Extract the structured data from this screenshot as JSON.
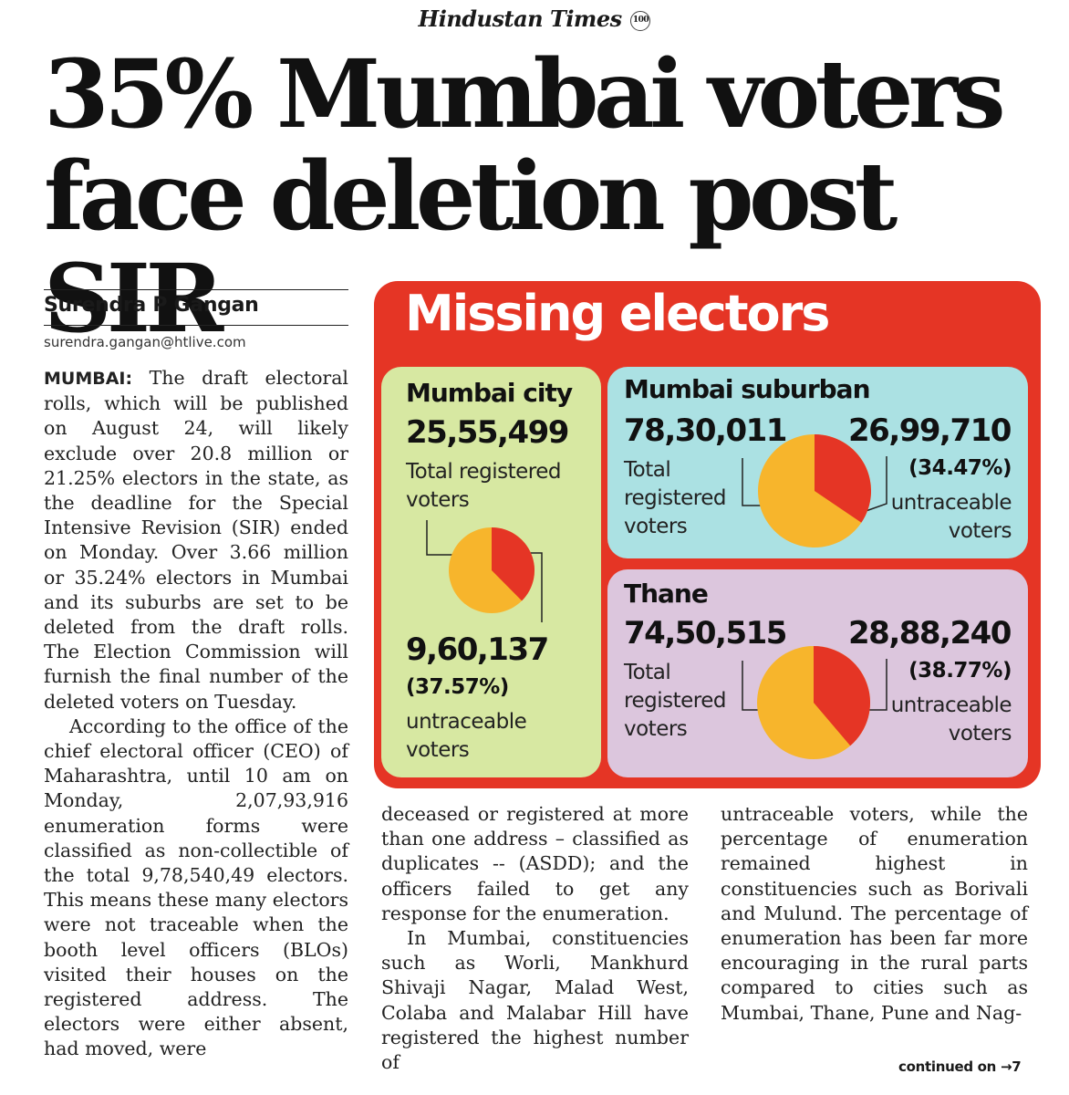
{
  "masthead": {
    "name": "Hindustan Times",
    "seal": "100"
  },
  "headline": {
    "line1": "35% Mumbai voters",
    "line2": "face deletion post SIR"
  },
  "byline": {
    "author": "Surendra P Gangan",
    "email": "surendra.gangan@htlive.com"
  },
  "article": {
    "dateline": "MUMBAI:",
    "col1_p1": " The draft electoral rolls, which will be published on August 24, will likely exclude over 20.8 million or 21.25% electors in the state, as the deadline for the Special Intensive Revision (SIR) ended on Monday. Over 3.66 million or 35.24% electors in Mumbai and its suburbs are set to be deleted from the draft rolls. The Election Commission will furnish the final number of the deleted voters on Tuesday.",
    "col1_p2": "According to the office of the chief electoral officer (CEO) of Maharashtra, until 10 am on Monday, 2,07,93,916 enumeration forms were classified as non-collectible of the total 9,78,540,49 electors. This means these many electors were not traceable when the booth level officers (BLOs) visited their houses on the registered address. The electors were either absent, had moved, were",
    "col2_p1": "deceased or registered at more than one address – classified as duplicates -- (ASDD); and the officers failed to get any response for the enumeration.",
    "col2_p2": "In Mumbai, constituencies such as Worli, Mankhurd Shivaji Nagar, Malad West, Colaba and Malabar Hill have registered the highest number of",
    "col3_p1": "untraceable voters, while the percentage of enumeration remained highest in constituencies such as Borivali and Mulund. The percentage of enumeration has been far more encouraging in the rural parts compared to cities such as Mumbai, Thane, Pune and Nag-",
    "continued": "continued on →7"
  },
  "graphic": {
    "title": "Missing electors",
    "colors": {
      "frame": "#e53525",
      "untraceable": "#e53525",
      "rest": "#f7b52c"
    },
    "city": {
      "name": "Mumbai city",
      "total": "25,55,499",
      "total_label_1": "Total registered",
      "total_label_2": "voters",
      "missing": "9,60,137",
      "pct": "(37.57%)",
      "missing_label_1": "untraceable",
      "missing_label_2": "voters",
      "share": 0.3757
    },
    "suburban": {
      "name": "Mumbai suburban",
      "total": "78,30,011",
      "total_label_1": "Total",
      "total_label_2": "registered",
      "total_label_3": "voters",
      "missing": "26,99,710",
      "pct": "(34.47%)",
      "missing_label_1": "untraceable",
      "missing_label_2": "voters",
      "share": 0.3447
    },
    "thane": {
      "name": "Thane",
      "total": "74,50,515",
      "total_label_1": "Total",
      "total_label_2": "registered",
      "total_label_3": "voters",
      "missing": "28,88,240",
      "pct": "(38.77%)",
      "missing_label_1": "untraceable",
      "missing_label_2": "voters",
      "share": 0.3877
    }
  }
}
